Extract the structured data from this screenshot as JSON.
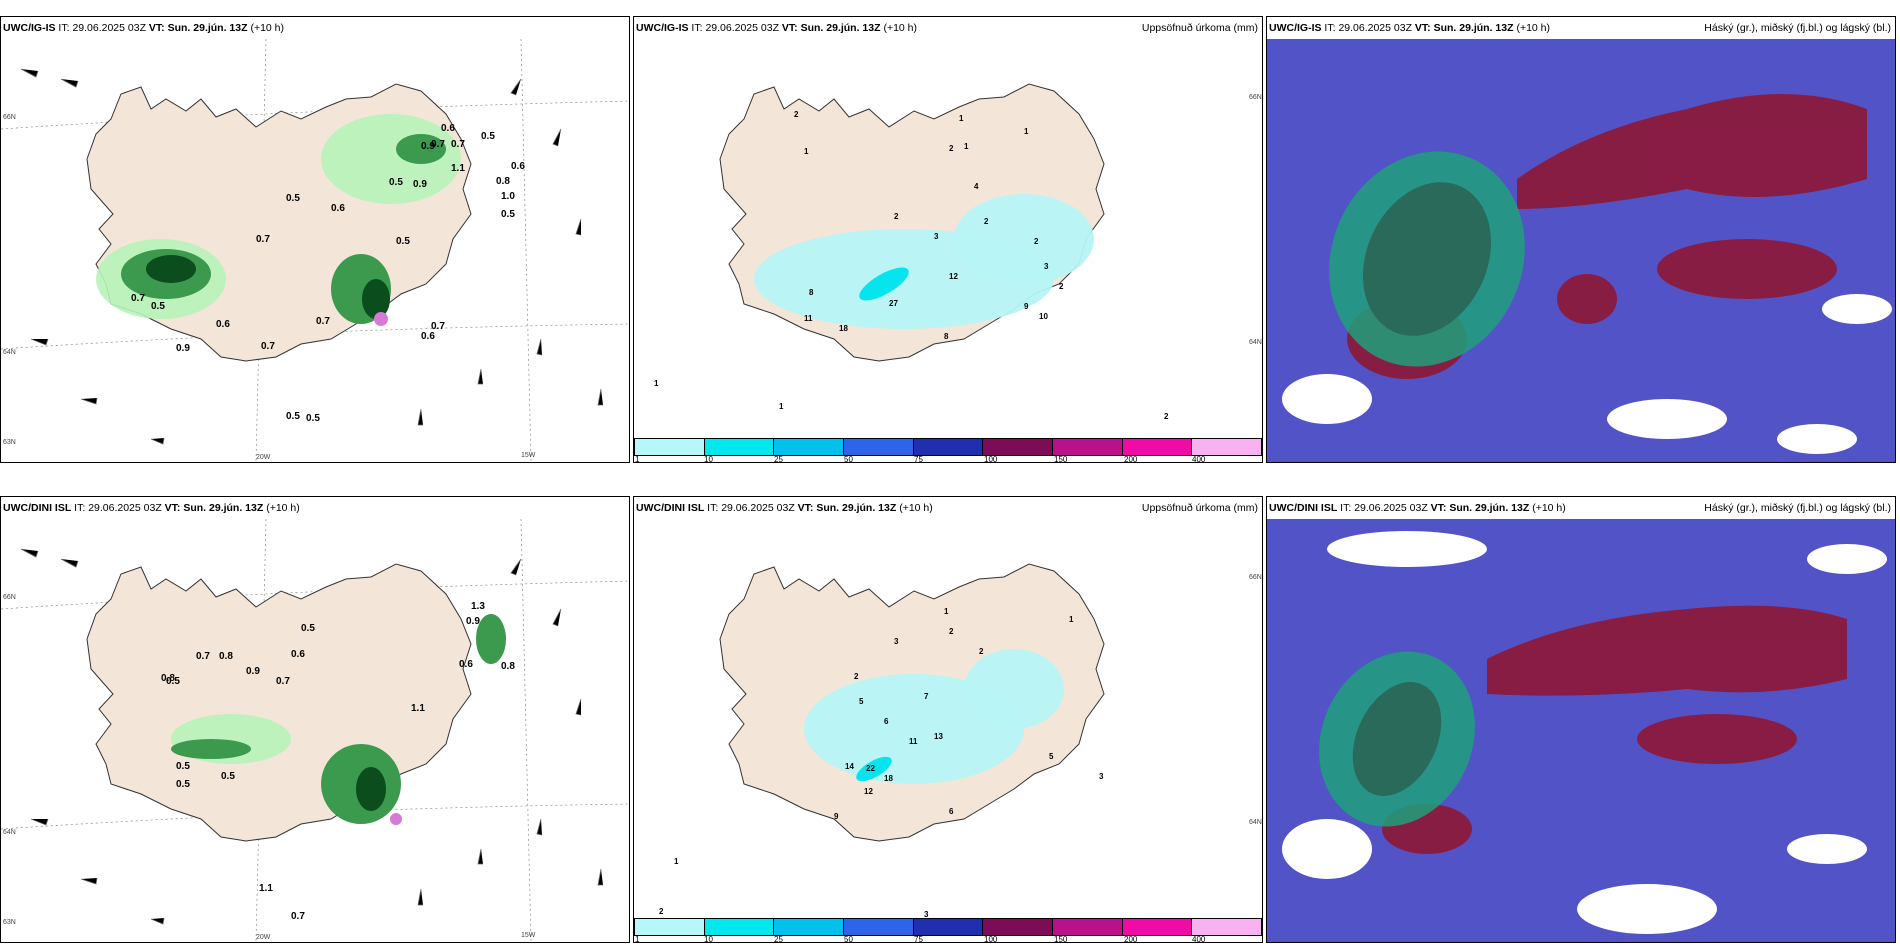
{
  "colors": {
    "land": "#f3e6d8",
    "precip_light": "#b7f3b9",
    "precip_mid": "#3b9a4e",
    "precip_dark": "#0b4d1c",
    "precip_magenta": "#d77ad6",
    "accum_light": "#b6f4f6",
    "accum_mid": "#06e4ef",
    "cloud_blue": "#5353c8",
    "cloud_red": "#8b1a3d",
    "cloud_green": "#1fa07a",
    "colorbar": [
      "#b7f7f8",
      "#00e7ee",
      "#00c1ec",
      "#2f63e9",
      "#1f2fb0",
      "#7c0d54",
      "#b8128b",
      "#f00ba7",
      "#f6b3ef"
    ]
  },
  "panels": {
    "p1": {
      "model": "UWC/IG-IS",
      "it": "29.06.2025 03Z",
      "vt": "Sun. 29.jún. 13Z",
      "lead": "(+10 h)"
    },
    "p2": {
      "model": "UWC/IG-IS",
      "it": "29.06.2025 03Z",
      "vt": "Sun. 29.jún. 13Z",
      "lead": "(+10 h)",
      "right": "Uppsöfnuð úrkoma (mm)"
    },
    "p3": {
      "model": "UWC/IG-IS",
      "it": "29.06.2025 03Z",
      "vt": "Sun. 29.jún. 13Z",
      "lead": "(+10 h)",
      "right": "Háský (gr.), miðský (fj.bl.) og lágský (bl.)"
    },
    "p4": {
      "model": "UWC/DINI ISL",
      "it": "29.06.2025 03Z",
      "vt": "Sun. 29.jún. 13Z",
      "lead": "(+10 h)"
    },
    "p5": {
      "model": "UWC/DINI ISL",
      "it": "29.06.2025 03Z",
      "vt": "Sun. 29.jún. 13Z",
      "lead": "(+10 h)",
      "right": "Uppsöfnuð úrkoma (mm)"
    },
    "p6": {
      "model": "UWC/DINI ISL",
      "it": "29.06.2025 03Z",
      "vt": "Sun. 29.jún. 13Z",
      "lead": "(+10 h)",
      "right": "Háský (gr.), miðský (fj.bl.) og lágský (bl.)"
    }
  },
  "labels": {
    "it": "IT:",
    "vt": "VT:"
  },
  "axes": {
    "lat66": "66N",
    "lat64": "64N",
    "lat63": "63N",
    "lon20": "20W",
    "lon15": "15W"
  },
  "colorbar_ticks": [
    "1",
    "10",
    "25",
    "50",
    "75",
    "100",
    "150",
    "200",
    "400"
  ],
  "p1_values": [
    "0.6",
    "0.5",
    "0.7",
    "0.9",
    "0.7",
    "1.1",
    "0.8",
    "0.6",
    "1.0",
    "0.5",
    "0.9",
    "0.5",
    "0.5",
    "0.6",
    "0.5",
    "0.7",
    "0.7",
    "0.5",
    "0.7",
    "0.9",
    "0.6",
    "0.7",
    "0.7",
    "0.6",
    "0.5",
    "0.5"
  ],
  "p2_values": [
    "2",
    "1",
    "1",
    "2",
    "1",
    "1",
    "2",
    "3",
    "2",
    "2",
    "4",
    "3",
    "2",
    "12",
    "27",
    "18",
    "8",
    "11",
    "10",
    "9",
    "8",
    "1",
    "1",
    "2"
  ],
  "p4_values": [
    "1.3",
    "0.9",
    "0.5",
    "0.6",
    "0.8",
    "0.5",
    "0.7",
    "0.8",
    "0.9",
    "0.7",
    "0.6",
    "0.8",
    "1.1",
    "0.5",
    "0.5",
    "0.5",
    "1.1",
    "0.7"
  ],
  "p5_values": [
    "1",
    "2",
    "3",
    "2",
    "2",
    "5",
    "7",
    "6",
    "13",
    "11",
    "14",
    "22",
    "18",
    "12",
    "9",
    "6",
    "5",
    "3",
    "1",
    "1",
    "2",
    "3"
  ]
}
